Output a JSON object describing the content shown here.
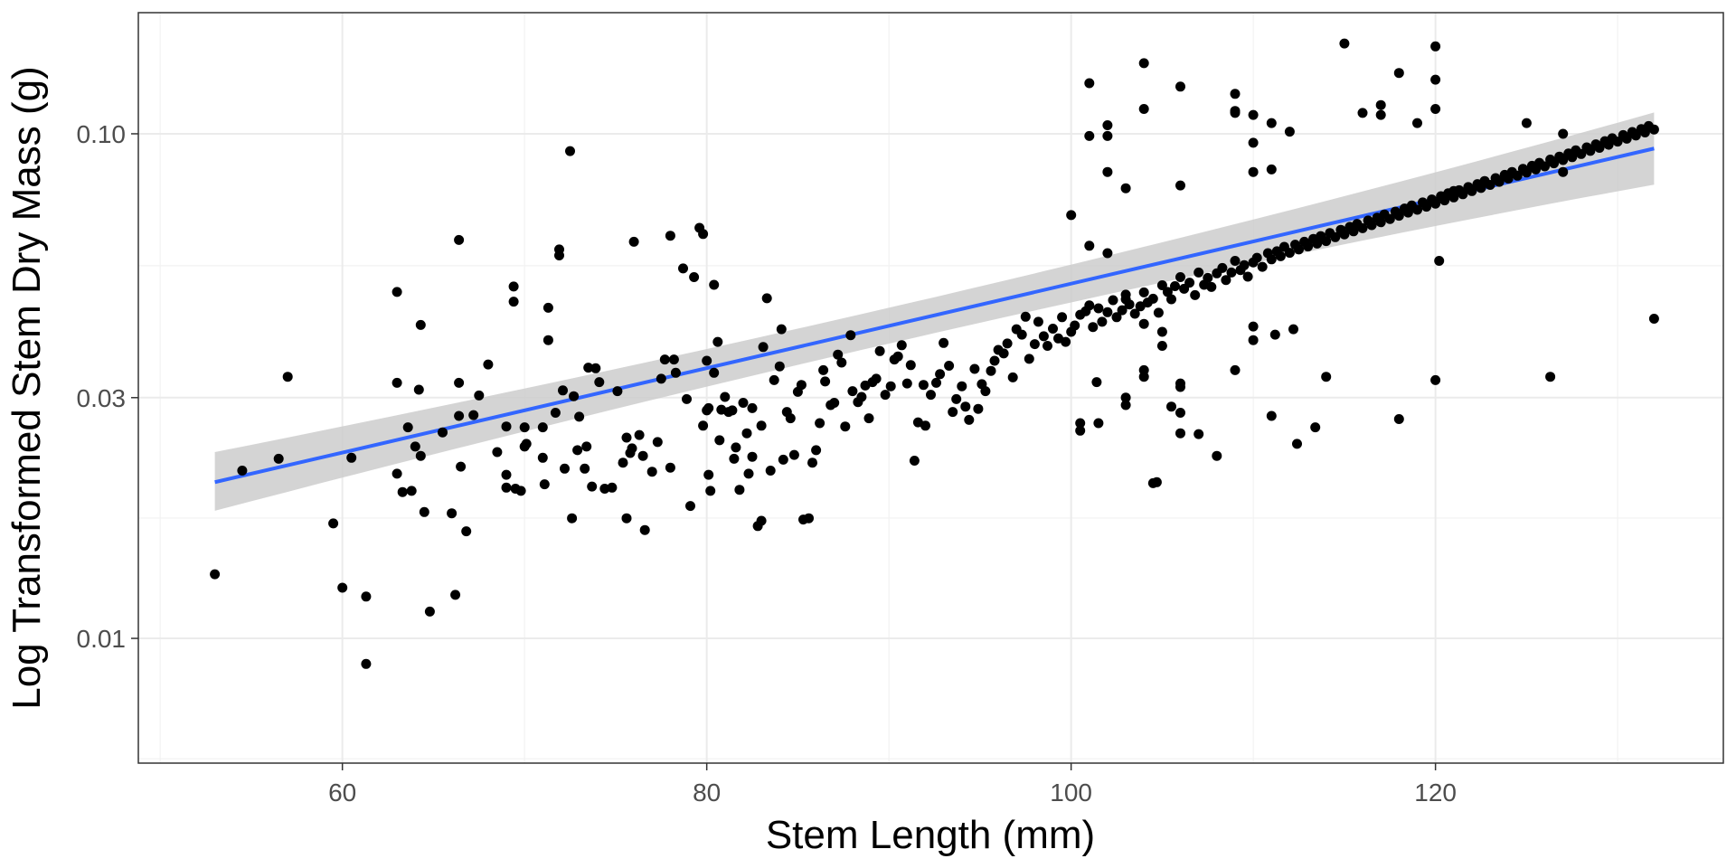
{
  "chart_data": {
    "type": "scatter",
    "xlabel": "Stem Length (mm)",
    "ylabel": "Log Transformed Stem Dry Mass (g)",
    "x_ticks": [
      {
        "value": 60,
        "label": "60"
      },
      {
        "value": 80,
        "label": "80"
      },
      {
        "value": 100,
        "label": "100"
      },
      {
        "value": 120,
        "label": "120"
      }
    ],
    "y_scale": "log10",
    "y_ticks": [
      {
        "value": 0.01,
        "label": "0.01"
      },
      {
        "value": 0.03,
        "label": "0.03"
      },
      {
        "value": 0.1,
        "label": "0.10"
      }
    ],
    "xlim": [
      48.8,
      135.8
    ],
    "ylim": [
      0.00566,
      0.1738
    ],
    "grid": true,
    "colors": {
      "points": "#000000",
      "fit_line": "#3366ff",
      "ribbon": "#cccccc",
      "grid": "#ebebeb",
      "border": "#333333"
    },
    "fit": {
      "x": [
        53,
        132
      ],
      "y": [
        0.0204,
        0.0935
      ],
      "ci_lower": [
        0.0179,
        0.0793
      ],
      "ci_upper": [
        0.0234,
        0.1102
      ]
    },
    "points": [
      [
        53,
        0.0134
      ],
      [
        54.5,
        0.0215
      ],
      [
        56.5,
        0.0227
      ],
      [
        57,
        0.033
      ],
      [
        59.5,
        0.0169
      ],
      [
        60,
        0.0126
      ],
      [
        60.5,
        0.0228
      ],
      [
        61.3,
        0.0121
      ],
      [
        61.3,
        0.0089
      ],
      [
        63,
        0.0486
      ],
      [
        63,
        0.0321
      ],
      [
        63,
        0.0212
      ],
      [
        63.3,
        0.0195
      ],
      [
        63.6,
        0.0262
      ],
      [
        63.8,
        0.0196
      ],
      [
        64,
        0.024
      ],
      [
        64.2,
        0.0311
      ],
      [
        64.3,
        0.0418
      ],
      [
        64.3,
        0.023
      ],
      [
        64.5,
        0.0178
      ],
      [
        64.8,
        0.0113
      ],
      [
        65.5,
        0.0256
      ],
      [
        66,
        0.0177
      ],
      [
        66.2,
        0.0122
      ],
      [
        66.4,
        0.0616
      ],
      [
        66.4,
        0.0321
      ],
      [
        66.4,
        0.0276
      ],
      [
        66.5,
        0.0219
      ],
      [
        66.8,
        0.0163
      ],
      [
        67.2,
        0.0277
      ],
      [
        67.5,
        0.0303
      ],
      [
        68,
        0.0349
      ],
      [
        68.5,
        0.0234
      ],
      [
        69,
        0.0263
      ],
      [
        69,
        0.0199
      ],
      [
        69,
        0.0211
      ],
      [
        69.4,
        0.0465
      ],
      [
        69.4,
        0.0498
      ],
      [
        69.5,
        0.0198
      ],
      [
        69.8,
        0.0196
      ],
      [
        70,
        0.0262
      ],
      [
        70,
        0.024
      ],
      [
        70.1,
        0.0243
      ],
      [
        71,
        0.0262
      ],
      [
        71,
        0.0228
      ],
      [
        71.1,
        0.0202
      ],
      [
        71.3,
        0.039
      ],
      [
        71.3,
        0.0452
      ],
      [
        71.7,
        0.028
      ],
      [
        71.9,
        0.059
      ],
      [
        71.9,
        0.0574
      ],
      [
        72.1,
        0.031
      ],
      [
        72.2,
        0.0217
      ],
      [
        72.5,
        0.0924
      ],
      [
        72.6,
        0.0173
      ],
      [
        72.7,
        0.0302
      ],
      [
        72.9,
        0.0236
      ],
      [
        73,
        0.0275
      ],
      [
        73.3,
        0.0217
      ],
      [
        73.4,
        0.024
      ],
      [
        73.5,
        0.0344
      ],
      [
        73.7,
        0.02
      ],
      [
        73.9,
        0.0343
      ],
      [
        74.1,
        0.0322
      ],
      [
        74.4,
        0.0198
      ],
      [
        74.8,
        0.0199
      ],
      [
        75.1,
        0.0309
      ],
      [
        75.4,
        0.0223
      ],
      [
        75.6,
        0.025
      ],
      [
        75.6,
        0.0173
      ],
      [
        75.8,
        0.0233
      ],
      [
        75.9,
        0.0238
      ],
      [
        76,
        0.0611
      ],
      [
        76.3,
        0.0253
      ],
      [
        76.5,
        0.023
      ],
      [
        76.6,
        0.0164
      ],
      [
        77,
        0.0214
      ],
      [
        77.3,
        0.0245
      ],
      [
        77.5,
        0.0327
      ],
      [
        77.7,
        0.0357
      ],
      [
        78,
        0.0628
      ],
      [
        78,
        0.0218
      ],
      [
        78.2,
        0.0357
      ],
      [
        78.3,
        0.0336
      ],
      [
        78.7,
        0.0541
      ],
      [
        78.9,
        0.0298
      ],
      [
        79.1,
        0.0183
      ],
      [
        79.3,
        0.052
      ],
      [
        79.6,
        0.0651
      ],
      [
        79.8,
        0.0633
      ],
      [
        79.8,
        0.0264
      ],
      [
        80,
        0.0355
      ],
      [
        80,
        0.0283
      ],
      [
        80.1,
        0.0286
      ],
      [
        80.1,
        0.0211
      ],
      [
        80.2,
        0.0196
      ],
      [
        80.4,
        0.0502
      ],
      [
        80.4,
        0.0336
      ],
      [
        80.6,
        0.0387
      ],
      [
        80.7,
        0.0247
      ],
      [
        80.8,
        0.0284
      ],
      [
        81,
        0.0301
      ],
      [
        81.2,
        0.0281
      ],
      [
        81.4,
        0.0283
      ],
      [
        81.5,
        0.0227
      ],
      [
        81.6,
        0.0239
      ],
      [
        81.8,
        0.0197
      ],
      [
        82,
        0.0293
      ],
      [
        82.2,
        0.0255
      ],
      [
        82.3,
        0.0212
      ],
      [
        82.5,
        0.0286
      ],
      [
        82.5,
        0.0229
      ],
      [
        82.8,
        0.0167
      ],
      [
        83,
        0.0171
      ],
      [
        83,
        0.0264
      ],
      [
        83.1,
        0.0378
      ],
      [
        83.3,
        0.0472
      ],
      [
        83.5,
        0.0215
      ],
      [
        83.7,
        0.0325
      ],
      [
        84,
        0.0346
      ],
      [
        84.1,
        0.041
      ],
      [
        84.2,
        0.0226
      ],
      [
        84.4,
        0.0281
      ],
      [
        84.6,
        0.0273
      ],
      [
        84.8,
        0.0231
      ],
      [
        85,
        0.0308
      ],
      [
        85.2,
        0.0318
      ],
      [
        85.3,
        0.0172
      ],
      [
        85.6,
        0.0173
      ],
      [
        85.8,
        0.0223
      ],
      [
        86,
        0.0236
      ],
      [
        86.2,
        0.0267
      ],
      [
        86.4,
        0.034
      ],
      [
        86.5,
        0.0323
      ],
      [
        86.8,
        0.029
      ],
      [
        87,
        0.0293
      ],
      [
        87.2,
        0.0365
      ],
      [
        87.4,
        0.0352
      ],
      [
        87.6,
        0.0263
      ],
      [
        87.9,
        0.0399
      ],
      [
        88,
        0.0309
      ],
      [
        88.3,
        0.0294
      ],
      [
        88.5,
        0.0301
      ],
      [
        88.7,
        0.0317
      ],
      [
        88.9,
        0.0273
      ],
      [
        89.1,
        0.0322
      ],
      [
        89.3,
        0.0327
      ],
      [
        89.5,
        0.0371
      ],
      [
        89.8,
        0.0304
      ],
      [
        90.1,
        0.0316
      ],
      [
        90.3,
        0.0357
      ],
      [
        90.5,
        0.0362
      ],
      [
        90.7,
        0.0381
      ],
      [
        91,
        0.032
      ],
      [
        91.2,
        0.0348
      ],
      [
        91.4,
        0.0225
      ],
      [
        91.6,
        0.0268
      ],
      [
        91.9,
        0.0318
      ],
      [
        92,
        0.0264
      ],
      [
        92.3,
        0.0304
      ],
      [
        92.6,
        0.0321
      ],
      [
        92.8,
        0.0334
      ],
      [
        93,
        0.0385
      ],
      [
        93.3,
        0.0347
      ],
      [
        93.5,
        0.0281
      ],
      [
        93.7,
        0.0298
      ],
      [
        94,
        0.0316
      ],
      [
        94.2,
        0.0288
      ],
      [
        94.4,
        0.0271
      ],
      [
        94.7,
        0.0342
      ],
      [
        94.9,
        0.0285
      ],
      [
        95.1,
        0.0319
      ],
      [
        95.3,
        0.0309
      ],
      [
        95.6,
        0.0339
      ],
      [
        95.8,
        0.0355
      ],
      [
        96,
        0.0373
      ],
      [
        96.3,
        0.0367
      ],
      [
        96.5,
        0.0384
      ],
      [
        96.8,
        0.0329
      ],
      [
        97,
        0.041
      ],
      [
        97.3,
        0.04
      ],
      [
        97.5,
        0.0434
      ],
      [
        97.7,
        0.0358
      ],
      [
        98,
        0.0383
      ],
      [
        98.2,
        0.0424
      ],
      [
        98.5,
        0.0397
      ],
      [
        98.7,
        0.038
      ],
      [
        99,
        0.0411
      ],
      [
        99.3,
        0.0393
      ],
      [
        99.5,
        0.0433
      ],
      [
        99.7,
        0.0387
      ],
      [
        100,
        0.0405
      ],
      [
        100.2,
        0.0417
      ],
      [
        100.5,
        0.0438
      ],
      [
        100.8,
        0.0445
      ],
      [
        101,
        0.0457
      ],
      [
        101.2,
        0.0414
      ],
      [
        101.5,
        0.0451
      ],
      [
        101.7,
        0.0424
      ],
      [
        102,
        0.0443
      ],
      [
        102.3,
        0.0468
      ],
      [
        102.5,
        0.0433
      ],
      [
        102.8,
        0.0447
      ],
      [
        103,
        0.048
      ],
      [
        103.2,
        0.0459
      ],
      [
        103.5,
        0.044
      ],
      [
        103.8,
        0.0455
      ],
      [
        104,
        0.0485
      ],
      [
        104.2,
        0.0463
      ],
      [
        104.5,
        0.0471
      ],
      [
        104.8,
        0.0442
      ],
      [
        105,
        0.0501
      ],
      [
        105.3,
        0.0486
      ],
      [
        105.5,
        0.047
      ],
      [
        105.7,
        0.0499
      ],
      [
        106,
        0.052
      ],
      [
        106.2,
        0.0493
      ],
      [
        106.5,
        0.0507
      ],
      [
        106.8,
        0.0479
      ],
      [
        107,
        0.0531
      ],
      [
        107.3,
        0.0502
      ],
      [
        107.5,
        0.0518
      ],
      [
        107.7,
        0.0497
      ],
      [
        108,
        0.0529
      ],
      [
        108.3,
        0.0542
      ],
      [
        108.5,
        0.0513
      ],
      [
        108.8,
        0.0531
      ],
      [
        109,
        0.056
      ],
      [
        109.3,
        0.0537
      ],
      [
        109.5,
        0.0549
      ],
      [
        109.7,
        0.0521
      ],
      [
        110,
        0.0556
      ],
      [
        110.2,
        0.0568
      ],
      [
        110.5,
        0.0545
      ],
      [
        110.8,
        0.058
      ],
      [
        111,
        0.0564
      ],
      [
        111.3,
        0.0585
      ],
      [
        111.5,
        0.0572
      ],
      [
        111.7,
        0.0597
      ],
      [
        112,
        0.0581
      ],
      [
        112.3,
        0.0603
      ],
      [
        112.5,
        0.059
      ],
      [
        112.8,
        0.0611
      ],
      [
        113,
        0.0598
      ],
      [
        113.3,
        0.0619
      ],
      [
        113.5,
        0.0606
      ],
      [
        113.7,
        0.0627
      ],
      [
        114,
        0.0613
      ],
      [
        114.2,
        0.0636
      ],
      [
        114.5,
        0.0624
      ],
      [
        114.8,
        0.0645
      ],
      [
        115,
        0.0632
      ],
      [
        115.3,
        0.0654
      ],
      [
        115.5,
        0.0641
      ],
      [
        115.7,
        0.0663
      ],
      [
        116,
        0.065
      ],
      [
        116.3,
        0.0673
      ],
      [
        116.5,
        0.0659
      ],
      [
        116.8,
        0.0682
      ],
      [
        117,
        0.0668
      ],
      [
        117.2,
        0.0692
      ],
      [
        117.5,
        0.0678
      ],
      [
        117.8,
        0.0701
      ],
      [
        118,
        0.0688
      ],
      [
        118.3,
        0.0711
      ],
      [
        118.5,
        0.0698
      ],
      [
        118.7,
        0.0721
      ],
      [
        119,
        0.0707
      ],
      [
        119.3,
        0.0731
      ],
      [
        119.5,
        0.0717
      ],
      [
        119.8,
        0.0741
      ],
      [
        120,
        0.0727
      ],
      [
        120.3,
        0.0752
      ],
      [
        120.5,
        0.0738
      ],
      [
        120.7,
        0.0762
      ],
      [
        121,
        0.0748
      ],
      [
        121.3,
        0.0773
      ],
      [
        121.5,
        0.0759
      ],
      [
        121.8,
        0.0784
      ],
      [
        122,
        0.077
      ],
      [
        122.3,
        0.0795
      ],
      [
        122.5,
        0.0781
      ],
      [
        122.7,
        0.0806
      ],
      [
        123,
        0.0792
      ],
      [
        123.3,
        0.0817
      ],
      [
        123.5,
        0.0803
      ],
      [
        123.8,
        0.0829
      ],
      [
        124,
        0.0815
      ],
      [
        124.2,
        0.084
      ],
      [
        124.5,
        0.0826
      ],
      [
        124.8,
        0.0852
      ],
      [
        125,
        0.0838
      ],
      [
        125.3,
        0.0864
      ],
      [
        125.5,
        0.085
      ],
      [
        125.7,
        0.0876
      ],
      [
        126,
        0.0862
      ],
      [
        126.3,
        0.0889
      ],
      [
        126.5,
        0.0874
      ],
      [
        126.8,
        0.0901
      ],
      [
        127,
        0.0887
      ],
      [
        127.3,
        0.0914
      ],
      [
        127.5,
        0.0899
      ],
      [
        127.7,
        0.0927
      ],
      [
        128,
        0.0912
      ],
      [
        128.3,
        0.094
      ],
      [
        128.5,
        0.0925
      ],
      [
        128.8,
        0.0953
      ],
      [
        129,
        0.0938
      ],
      [
        129.3,
        0.0967
      ],
      [
        129.5,
        0.0951
      ],
      [
        129.7,
        0.098
      ],
      [
        130,
        0.0965
      ],
      [
        130.3,
        0.0994
      ],
      [
        130.5,
        0.0978
      ],
      [
        130.8,
        0.1008
      ],
      [
        131,
        0.0992
      ],
      [
        131.3,
        0.1022
      ],
      [
        131.5,
        0.1006
      ],
      [
        131.7,
        0.1036
      ],
      [
        132,
        0.102
      ],
      [
        132,
        0.043
      ],
      [
        126.3,
        0.033
      ],
      [
        127,
        0.084
      ],
      [
        127,
        0.1
      ],
      [
        121,
        0.077
      ],
      [
        120.2,
        0.056
      ],
      [
        120,
        0.0325
      ],
      [
        118,
        0.0272
      ],
      [
        117,
        0.109
      ],
      [
        117,
        0.114
      ],
      [
        118,
        0.132
      ],
      [
        116,
        0.11
      ],
      [
        115,
        0.151
      ],
      [
        119,
        0.105
      ],
      [
        120,
        0.128
      ],
      [
        120,
        0.149
      ],
      [
        120,
        0.112
      ],
      [
        125,
        0.105
      ],
      [
        114,
        0.033
      ],
      [
        113.4,
        0.0262
      ],
      [
        112.4,
        0.0243
      ],
      [
        112.2,
        0.041
      ],
      [
        111.2,
        0.04
      ],
      [
        111,
        0.0276
      ],
      [
        110,
        0.0415
      ],
      [
        110,
        0.039
      ],
      [
        109,
        0.034
      ],
      [
        110,
        0.109
      ],
      [
        110,
        0.096
      ],
      [
        110,
        0.084
      ],
      [
        111,
        0.105
      ],
      [
        111,
        0.085
      ],
      [
        112,
        0.101
      ],
      [
        109,
        0.11
      ],
      [
        109,
        0.111
      ],
      [
        109,
        0.12
      ],
      [
        108,
        0.023
      ],
      [
        107,
        0.0254
      ],
      [
        106,
        0.0255
      ],
      [
        106,
        0.028
      ],
      [
        106,
        0.0315
      ],
      [
        106,
        0.032
      ],
      [
        106,
        0.079
      ],
      [
        106,
        0.124
      ],
      [
        105.5,
        0.0288
      ],
      [
        105,
        0.0405
      ],
      [
        105,
        0.038
      ],
      [
        104.7,
        0.0204
      ],
      [
        104.5,
        0.0203
      ],
      [
        104,
        0.033
      ],
      [
        104,
        0.034
      ],
      [
        104,
        0.042
      ],
      [
        104,
        0.112
      ],
      [
        104,
        0.138
      ],
      [
        103,
        0.029
      ],
      [
        103,
        0.03
      ],
      [
        103,
        0.047
      ],
      [
        103,
        0.078
      ],
      [
        102,
        0.058
      ],
      [
        102,
        0.084
      ],
      [
        102,
        0.099
      ],
      [
        102,
        0.104
      ],
      [
        101.4,
        0.0322
      ],
      [
        101.5,
        0.0267
      ],
      [
        101,
        0.06
      ],
      [
        101,
        0.099
      ],
      [
        101,
        0.126
      ],
      [
        100.5,
        0.0258
      ],
      [
        100.5,
        0.0267
      ],
      [
        100,
        0.069
      ]
    ]
  }
}
